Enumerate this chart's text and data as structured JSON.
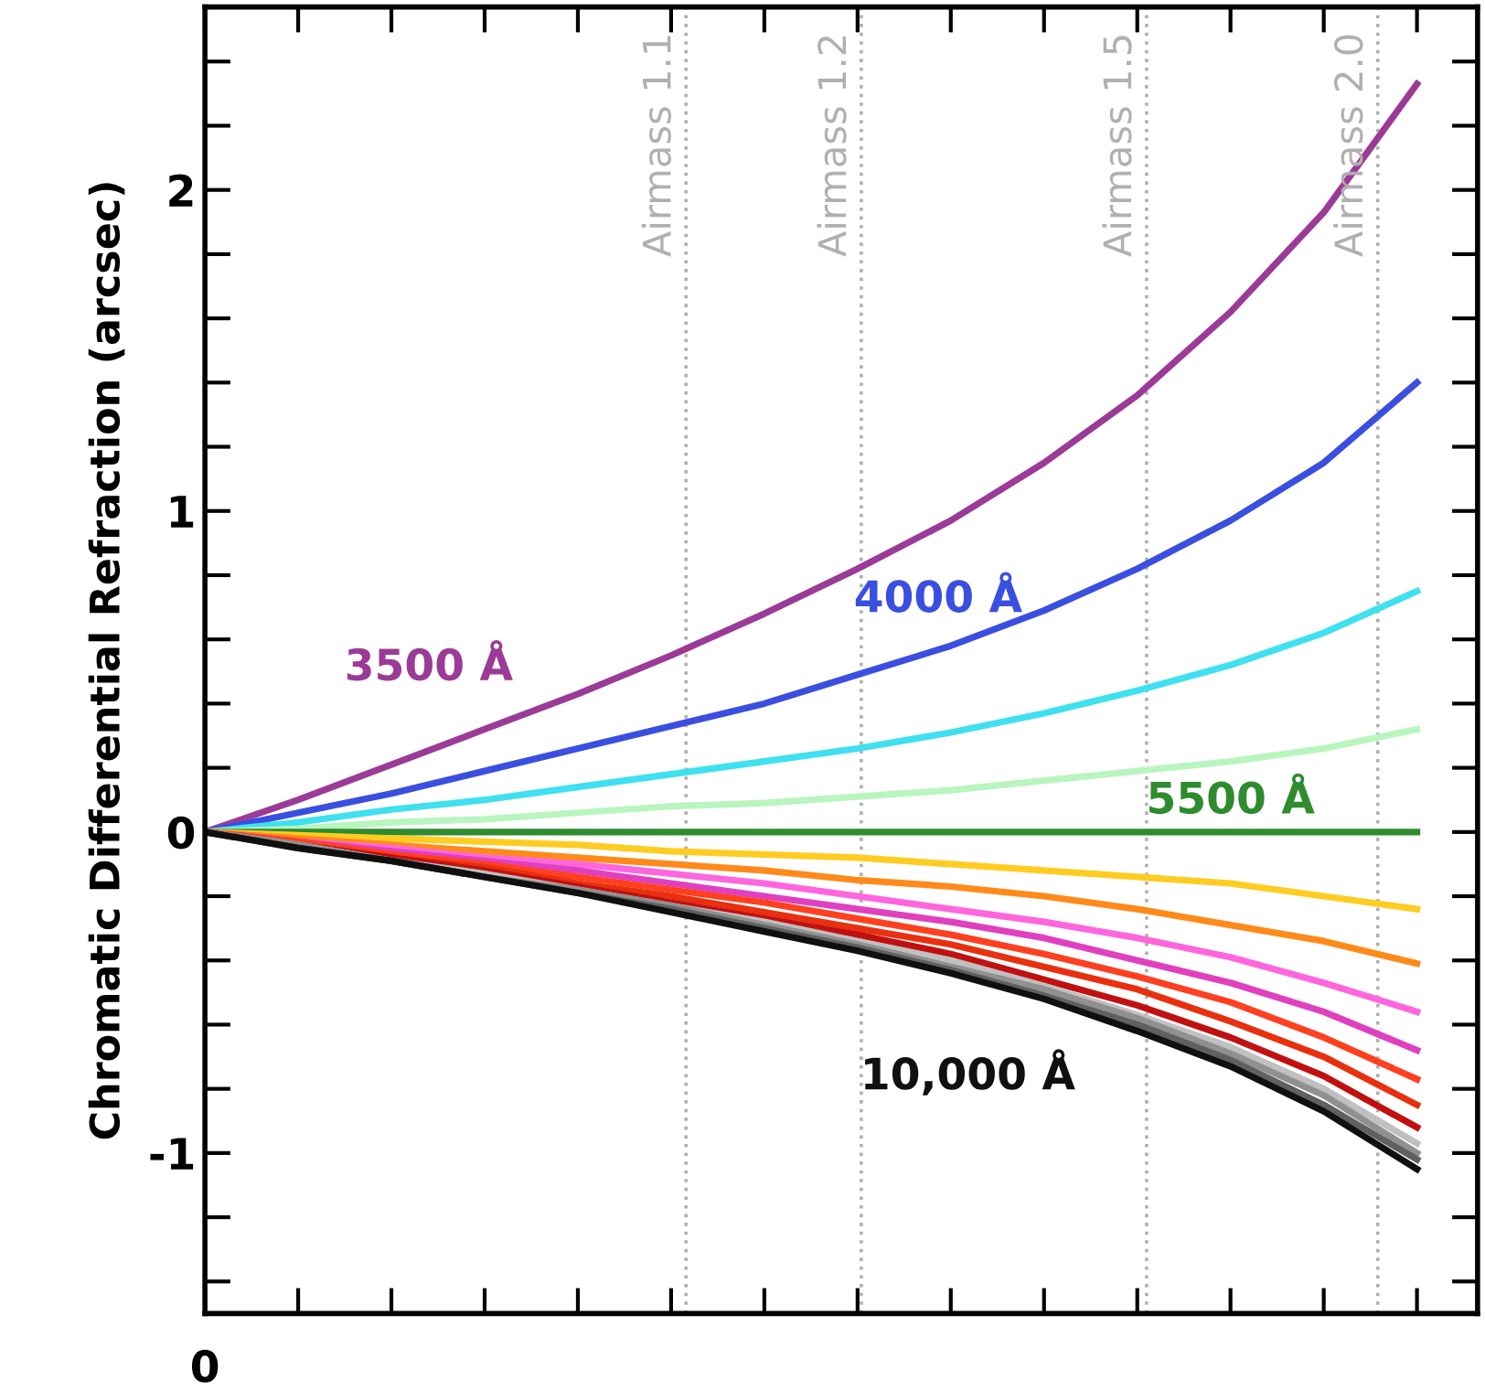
{
  "chart_data": {
    "type": "line",
    "ylabel": "Chromatic Differential Refraction (arcsec)",
    "annotations": [
      "0",
      "Airmass 1.1",
      "Airmass 1.2",
      "Airmass 1.5",
      "Airmass 2.0"
    ],
    "categories": [
      null,
      null,
      null,
      null,
      null,
      null,
      null,
      null,
      null,
      null,
      null,
      null,
      null,
      null
    ],
    "ylim": [
      -1.5,
      2.57
    ],
    "yticks": [
      -1,
      0,
      1,
      2,
      {
        "value": -1.4,
        "label": null
      },
      {
        "value": -1.2,
        "label": null
      },
      {
        "value": -0.8,
        "label": null
      },
      {
        "value": -0.6,
        "label": null
      },
      {
        "value": -0.4,
        "label": null
      },
      {
        "value": -0.2,
        "label": null
      },
      {
        "value": 0.2,
        "label": null
      },
      {
        "value": 0.4,
        "label": null
      },
      {
        "value": 0.6,
        "label": null
      },
      {
        "value": 0.8,
        "label": null
      },
      {
        "value": 1.2,
        "label": null
      },
      {
        "value": 1.4,
        "label": null
      },
      {
        "value": 1.6,
        "label": null
      },
      {
        "value": 1.8,
        "label": null
      },
      {
        "value": 2.2,
        "label": null
      },
      {
        "value": 2.4,
        "label": null
      }
    ],
    "grid": false,
    "legend": false,
    "marker": "none",
    "line_style": "solid",
    "series": [
      {
        "name": "3500 Å",
        "color": "#9b3a97",
        "values": [
          0,
          0.1,
          0.21,
          0.32,
          0.43,
          0.55,
          0.68,
          0.82,
          0.97,
          1.15,
          1.36,
          1.62,
          1.93,
          2.33
        ]
      },
      {
        "name": "4000 Å",
        "color": "#3a4fe0",
        "values": [
          0,
          0.06,
          0.12,
          0.19,
          0.26,
          0.33,
          0.4,
          0.49,
          0.58,
          0.69,
          0.82,
          0.97,
          1.15,
          1.4
        ]
      },
      {
        "color": "#3fe0ef",
        "values": [
          0,
          0.03,
          0.07,
          0.1,
          0.14,
          0.18,
          0.22,
          0.26,
          0.31,
          0.37,
          0.44,
          0.52,
          0.62,
          0.75
        ]
      },
      {
        "color": "#b9f5bf",
        "values": [
          0,
          0.01,
          0.03,
          0.04,
          0.06,
          0.08,
          0.09,
          0.11,
          0.13,
          0.16,
          0.19,
          0.22,
          0.26,
          0.32
        ]
      },
      {
        "name": "5500 Å",
        "color": "#2e8b2e",
        "values": [
          0,
          0,
          0,
          0,
          0,
          0,
          0,
          0,
          0,
          0,
          0,
          0,
          0,
          0
        ]
      },
      {
        "color": "#ffcc22",
        "values": [
          0,
          -0.01,
          -0.02,
          -0.03,
          -0.04,
          -0.06,
          -0.07,
          -0.08,
          -0.1,
          -0.12,
          -0.14,
          -0.16,
          -0.2,
          -0.24
        ]
      },
      {
        "color": "#ff8a1a",
        "values": [
          0,
          -0.02,
          -0.04,
          -0.06,
          -0.08,
          -0.1,
          -0.12,
          -0.15,
          -0.17,
          -0.2,
          -0.24,
          -0.29,
          -0.34,
          -0.41
        ]
      },
      {
        "color": "#ff66dd",
        "values": [
          0,
          -0.03,
          -0.05,
          -0.08,
          -0.1,
          -0.13,
          -0.16,
          -0.2,
          -0.24,
          -0.28,
          -0.33,
          -0.39,
          -0.47,
          -0.56
        ]
      },
      {
        "color": "#e040c0",
        "values": [
          0,
          -0.03,
          -0.06,
          -0.09,
          -0.12,
          -0.16,
          -0.2,
          -0.24,
          -0.28,
          -0.33,
          -0.4,
          -0.47,
          -0.56,
          -0.68
        ]
      },
      {
        "color": "#ff4020",
        "values": [
          0,
          -0.03,
          -0.07,
          -0.1,
          -0.14,
          -0.18,
          -0.22,
          -0.27,
          -0.32,
          -0.38,
          -0.45,
          -0.53,
          -0.64,
          -0.77
        ]
      },
      {
        "color": "#e83010",
        "values": [
          0,
          -0.04,
          -0.08,
          -0.11,
          -0.16,
          -0.2,
          -0.25,
          -0.3,
          -0.35,
          -0.42,
          -0.49,
          -0.59,
          -0.7,
          -0.85
        ]
      },
      {
        "color": "#c01010",
        "values": [
          0,
          -0.04,
          -0.08,
          -0.12,
          -0.17,
          -0.22,
          -0.27,
          -0.32,
          -0.38,
          -0.46,
          -0.54,
          -0.64,
          -0.76,
          -0.92
        ]
      },
      {
        "color": "#c0c0c0",
        "values": [
          0,
          -0.04,
          -0.09,
          -0.13,
          -0.18,
          -0.23,
          -0.28,
          -0.34,
          -0.4,
          -0.48,
          -0.57,
          -0.67,
          -0.8,
          -0.97
        ]
      },
      {
        "color": "#909090",
        "values": [
          0,
          -0.04,
          -0.09,
          -0.14,
          -0.18,
          -0.23,
          -0.29,
          -0.35,
          -0.42,
          -0.49,
          -0.58,
          -0.69,
          -0.82,
          -1.0
        ]
      },
      {
        "color": "#606060",
        "values": [
          0,
          -0.05,
          -0.09,
          -0.14,
          -0.19,
          -0.24,
          -0.3,
          -0.36,
          -0.43,
          -0.51,
          -0.6,
          -0.71,
          -0.85,
          -1.02
        ]
      },
      {
        "name": "10,000 Å",
        "color": "#101010",
        "values": [
          0,
          -0.05,
          -0.09,
          -0.14,
          -0.19,
          -0.25,
          -0.31,
          -0.37,
          -0.44,
          -0.52,
          -0.62,
          -0.73,
          -0.87,
          -1.05
        ]
      }
    ]
  }
}
